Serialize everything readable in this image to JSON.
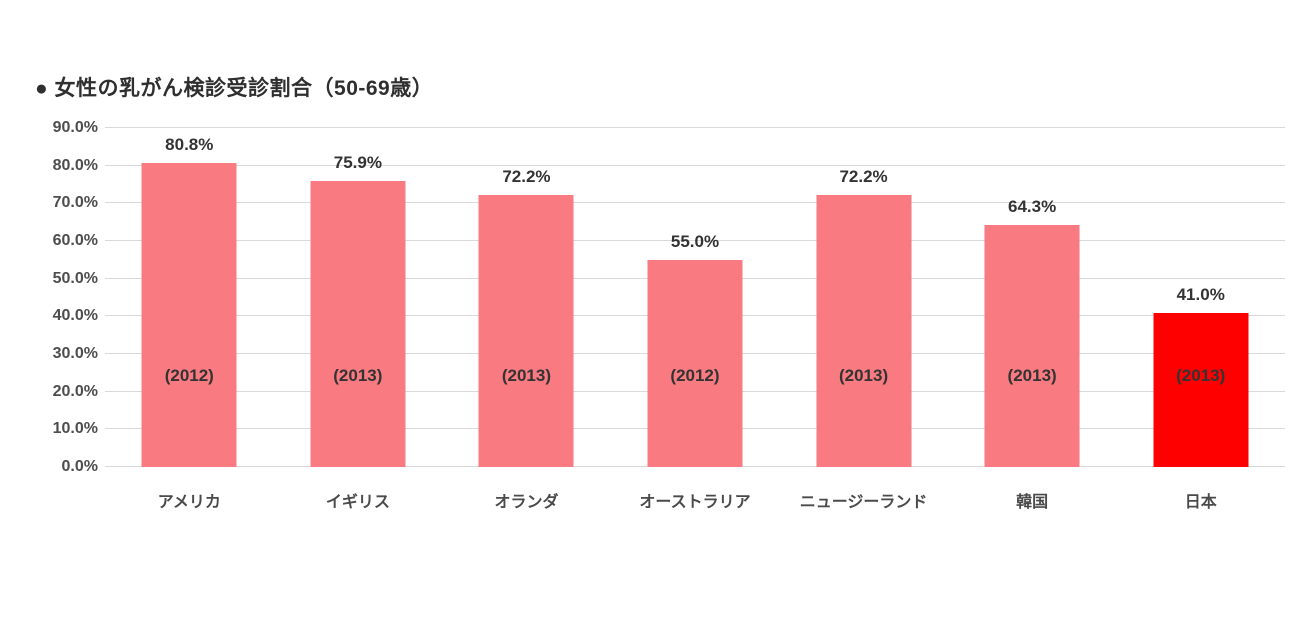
{
  "title": "● 女性の乳がん検診受診割合（50-69歳）",
  "chart_data": {
    "type": "bar",
    "title": "女性の乳がん検診受診割合（50-69歳）",
    "categories": [
      "アメリカ",
      "イギリス",
      "オランダ",
      "オーストラリア",
      "ニュージーランド",
      "韓国",
      "日本"
    ],
    "values": [
      80.8,
      75.9,
      72.2,
      55.0,
      72.2,
      64.3,
      41.0
    ],
    "value_labels": [
      "80.8%",
      "75.9%",
      "72.2%",
      "55.0%",
      "72.2%",
      "64.3%",
      "41.0%"
    ],
    "bar_annotations": [
      "(2012)",
      "(2013)",
      "(2013)",
      "(2012)",
      "(2013)",
      "(2013)",
      "(2013)"
    ],
    "bar_colors": [
      "#F97A80",
      "#F97A80",
      "#F97A80",
      "#F97A80",
      "#F97A80",
      "#F97A80",
      "#FF0000"
    ],
    "y_ticks": [
      "0.0%",
      "10.0%",
      "20.0%",
      "30.0%",
      "40.0%",
      "50.0%",
      "60.0%",
      "70.0%",
      "80.0%",
      "90.0%"
    ],
    "y_tick_values": [
      0,
      10,
      20,
      30,
      40,
      50,
      60,
      70,
      80,
      90
    ],
    "ylim": [
      0,
      90
    ],
    "xlabel": "",
    "ylabel": "",
    "grid": true,
    "legend_position": "none"
  },
  "colors": {
    "default_bar": "#F97A80",
    "highlight_bar": "#FF0000",
    "gridline": "#D9D9D9",
    "title_text": "#2F2F2F",
    "axis_text": "#4D4D4D",
    "label_text": "#333333",
    "background": "#FFFFFF"
  }
}
